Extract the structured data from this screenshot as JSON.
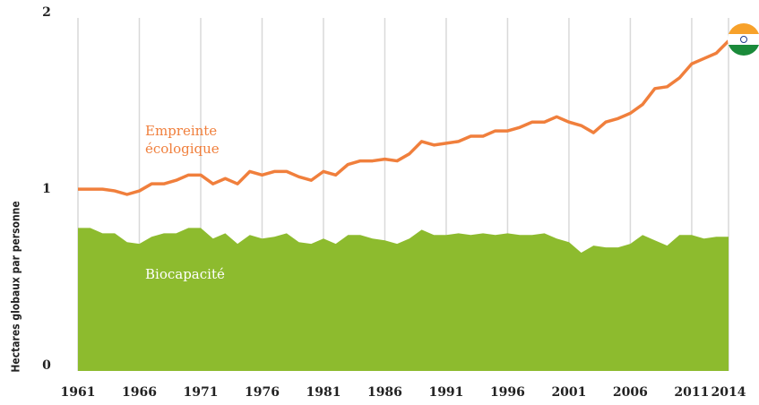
{
  "chart_data": {
    "type": "line",
    "ylabel": "Hectares globaux par personne",
    "x": [
      1961,
      1962,
      1963,
      1964,
      1965,
      1966,
      1967,
      1968,
      1969,
      1970,
      1971,
      1972,
      1973,
      1974,
      1975,
      1976,
      1977,
      1978,
      1979,
      1980,
      1981,
      1982,
      1983,
      1984,
      1985,
      1986,
      1987,
      1988,
      1989,
      1990,
      1991,
      1992,
      1993,
      1994,
      1995,
      1996,
      1997,
      1998,
      1999,
      2000,
      2001,
      2002,
      2003,
      2004,
      2005,
      2006,
      2007,
      2008,
      2009,
      2010,
      2011,
      2012,
      2013,
      2014
    ],
    "series": [
      {
        "name": "Empreinte écologique",
        "color": "#f07f3c",
        "kind": "line",
        "values": [
          1.03,
          1.03,
          1.03,
          1.02,
          1.0,
          1.02,
          1.06,
          1.06,
          1.08,
          1.11,
          1.11,
          1.06,
          1.09,
          1.06,
          1.13,
          1.11,
          1.13,
          1.13,
          1.1,
          1.08,
          1.13,
          1.11,
          1.17,
          1.19,
          1.19,
          1.2,
          1.19,
          1.23,
          1.3,
          1.28,
          1.29,
          1.3,
          1.33,
          1.33,
          1.36,
          1.36,
          1.38,
          1.41,
          1.41,
          1.44,
          1.41,
          1.39,
          1.35,
          1.41,
          1.43,
          1.46,
          1.51,
          1.6,
          1.61,
          1.66,
          1.74,
          1.77,
          1.8,
          1.87
        ]
      },
      {
        "name": "Biocapacité",
        "color": "#8dbb2e",
        "kind": "area",
        "values": [
          0.81,
          0.81,
          0.78,
          0.78,
          0.73,
          0.72,
          0.76,
          0.78,
          0.78,
          0.81,
          0.81,
          0.75,
          0.78,
          0.72,
          0.77,
          0.75,
          0.76,
          0.78,
          0.73,
          0.72,
          0.75,
          0.72,
          0.77,
          0.77,
          0.75,
          0.74,
          0.72,
          0.75,
          0.8,
          0.77,
          0.77,
          0.78,
          0.77,
          0.78,
          0.77,
          0.78,
          0.77,
          0.77,
          0.78,
          0.75,
          0.73,
          0.67,
          0.71,
          0.7,
          0.7,
          0.72,
          0.77,
          0.74,
          0.71,
          0.77,
          0.77,
          0.75,
          0.76,
          0.76
        ]
      }
    ],
    "xlim": [
      1961,
      2014
    ],
    "xticks": [
      1961,
      1966,
      1971,
      1976,
      1981,
      1986,
      1991,
      1996,
      2001,
      2006,
      2011,
      2014
    ],
    "ylim": [
      0,
      2
    ],
    "yticks": [
      0,
      1,
      2
    ],
    "grid": "x"
  }
}
